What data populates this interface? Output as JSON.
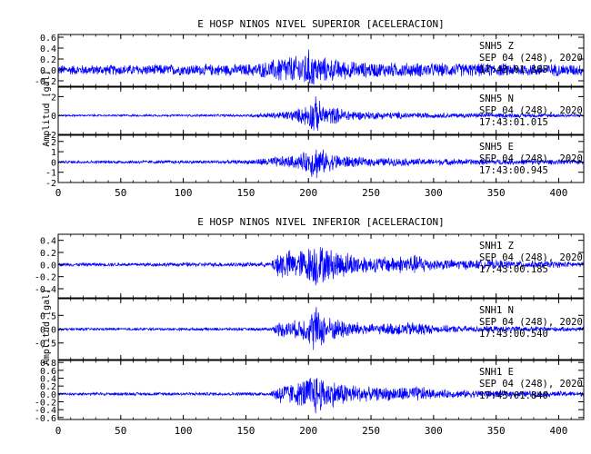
{
  "chart_data": [
    {
      "type": "line",
      "title": "E HOSP NINOS NIVEL SUPERIOR [ACELERACION]",
      "ylabel": "Amplitud [gal]",
      "xlim": [
        0,
        420
      ],
      "x_ticks": [
        "0",
        "50",
        "100",
        "150",
        "200",
        "250",
        "300",
        "350",
        "400"
      ],
      "line_color": "#0000ff",
      "grid": false,
      "panels": [
        {
          "channel": "Z",
          "annotation": [
            "SNH5  Z",
            "SEP 04 (248), 2020",
            "17:43:01.385"
          ],
          "ylim": [
            -0.3,
            0.65
          ],
          "y_ticks": [
            "0.6",
            "0.4",
            "0.2",
            "0.0",
            "-0.2"
          ],
          "envelope": {
            "x": [
              0,
              150,
              170,
              178,
              190,
              200,
              205,
              215,
              240,
              300,
              420
            ],
            "amp": [
              0.1,
              0.12,
              0.18,
              0.3,
              0.28,
              0.42,
              0.32,
              0.24,
              0.16,
              0.14,
              0.12
            ]
          }
        },
        {
          "channel": "N",
          "annotation": [
            "SNH5  N",
            "SEP 04 (248), 2020",
            "17:43:01.015"
          ],
          "ylim": [
            -2,
            3
          ],
          "y_ticks": [
            "2",
            "0",
            "-2"
          ],
          "envelope": {
            "x": [
              0,
              150,
              175,
              190,
              200,
              205,
              212,
              240,
              300,
              420
            ],
            "amp": [
              0.1,
              0.15,
              0.4,
              0.7,
              1.4,
              2.3,
              1.2,
              0.5,
              0.3,
              0.2
            ]
          }
        },
        {
          "channel": "E",
          "annotation": [
            "SNH5  E",
            "SEP 04 (248), 2020",
            "17:43:00.945"
          ],
          "ylim": [
            -2,
            2.6
          ],
          "y_ticks": [
            "2",
            "1",
            "0",
            "-1",
            "-2"
          ],
          "envelope": {
            "x": [
              0,
              150,
              175,
              190,
              200,
              205,
              215,
              240,
              300,
              420
            ],
            "amp": [
              0.15,
              0.2,
              0.6,
              0.7,
              1.2,
              2.0,
              1.0,
              0.5,
              0.35,
              0.25
            ]
          }
        }
      ]
    },
    {
      "type": "line",
      "title": "E HOSP NINOS NIVEL INFERIOR [ACELERACION]",
      "ylabel": "Amplitud [gal]",
      "xlim": [
        0,
        420
      ],
      "x_ticks": [
        "0",
        "50",
        "100",
        "150",
        "200",
        "250",
        "300",
        "350",
        "400"
      ],
      "line_color": "#0000ff",
      "grid": false,
      "panels": [
        {
          "channel": "Z",
          "annotation": [
            "SNH1  Z",
            "SEP 04 (248), 2020",
            "17:43:00.185"
          ],
          "ylim": [
            -0.55,
            0.5
          ],
          "y_ticks": [
            "0.4",
            "0.2",
            "0.0",
            "-0.2",
            "-0.4"
          ],
          "envelope": {
            "x": [
              0,
              170,
              176,
              190,
              200,
              205,
              215,
              250,
              290,
              300,
              420
            ],
            "amp": [
              0.03,
              0.04,
              0.28,
              0.25,
              0.32,
              0.42,
              0.3,
              0.14,
              0.18,
              0.1,
              0.05
            ]
          }
        },
        {
          "channel": "N",
          "annotation": [
            "SNH1  N",
            "SEP 04 (248), 2020",
            "17:43:00.540"
          ],
          "ylim": [
            -1.1,
            1.1
          ],
          "y_ticks": [
            "0.5",
            "0.0",
            "-0.5"
          ],
          "envelope": {
            "x": [
              0,
              170,
              176,
              190,
              200,
              205,
              215,
              250,
              290,
              300,
              420
            ],
            "amp": [
              0.05,
              0.06,
              0.3,
              0.35,
              0.55,
              1.0,
              0.5,
              0.2,
              0.3,
              0.15,
              0.08
            ]
          }
        },
        {
          "channel": "E",
          "annotation": [
            "SNH1  E",
            "SEP 04 (248), 2020",
            "17:43:01.840"
          ],
          "ylim": [
            -0.65,
            0.85
          ],
          "y_ticks": [
            "0.8",
            "0.6",
            "0.4",
            "0.2",
            "0.0",
            "-0.2",
            "-0.4",
            "-0.6"
          ],
          "envelope": {
            "x": [
              0,
              170,
              176,
              190,
              200,
              205,
              215,
              250,
              290,
              300,
              420
            ],
            "amp": [
              0.04,
              0.05,
              0.3,
              0.3,
              0.5,
              0.62,
              0.4,
              0.18,
              0.22,
              0.12,
              0.07
            ]
          }
        }
      ]
    }
  ]
}
